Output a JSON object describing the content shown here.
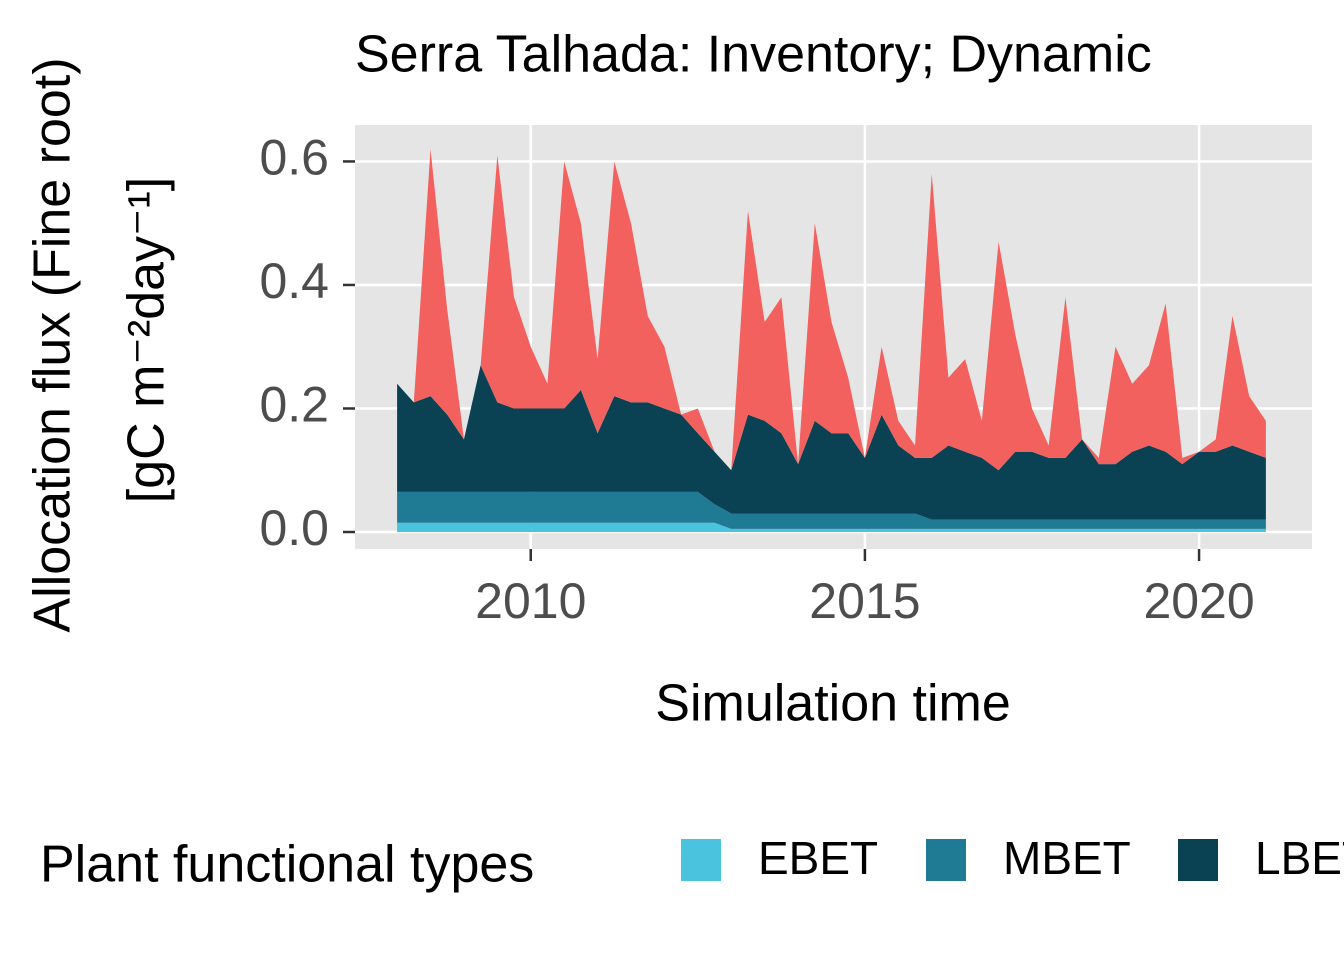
{
  "chart_data": {
    "type": "stacked_area",
    "title": "Serra Talhada: Inventory; Dynamic",
    "x_label": "Simulation time",
    "y_label": [
      "Allocation flux (Fine root)",
      "[gC m⁻²day⁻¹]"
    ],
    "legend_title": "Plant functional types",
    "x": [
      2008,
      2008.25,
      2008.5,
      2008.75,
      2009,
      2009.25,
      2009.5,
      2009.75,
      2010,
      2010.25,
      2010.5,
      2010.75,
      2011,
      2011.25,
      2011.5,
      2011.75,
      2012,
      2012.25,
      2012.5,
      2012.75,
      2013,
      2013.25,
      2013.5,
      2013.75,
      2014,
      2014.25,
      2014.5,
      2014.75,
      2015,
      2015.25,
      2015.5,
      2015.75,
      2016,
      2016.25,
      2016.5,
      2016.75,
      2017,
      2017.25,
      2017.5,
      2017.75,
      2018,
      2018.25,
      2018.5,
      2018.75,
      2019,
      2019.25,
      2019.5,
      2019.75,
      2020,
      2020.25,
      2020.5,
      2020.75,
      2021
    ],
    "series": [
      {
        "name": "EBET",
        "color": "#4ac3de",
        "values": [
          0.015,
          0.015,
          0.015,
          0.015,
          0.015,
          0.015,
          0.015,
          0.015,
          0.015,
          0.015,
          0.015,
          0.015,
          0.015,
          0.015,
          0.015,
          0.015,
          0.015,
          0.015,
          0.015,
          0.015,
          0.005,
          0.005,
          0.005,
          0.005,
          0.005,
          0.005,
          0.005,
          0.005,
          0.005,
          0.005,
          0.005,
          0.005,
          0.005,
          0.005,
          0.005,
          0.005,
          0.005,
          0.005,
          0.005,
          0.005,
          0.005,
          0.005,
          0.005,
          0.005,
          0.005,
          0.005,
          0.005,
          0.005,
          0.005,
          0.005,
          0.005,
          0.005,
          0.005
        ]
      },
      {
        "name": "MBET",
        "color": "#1f7a93",
        "values": [
          0.05,
          0.05,
          0.05,
          0.05,
          0.05,
          0.05,
          0.05,
          0.05,
          0.05,
          0.05,
          0.05,
          0.05,
          0.05,
          0.05,
          0.05,
          0.05,
          0.05,
          0.05,
          0.05,
          0.03,
          0.025,
          0.025,
          0.025,
          0.025,
          0.025,
          0.025,
          0.025,
          0.025,
          0.025,
          0.025,
          0.025,
          0.025,
          0.015,
          0.015,
          0.015,
          0.015,
          0.015,
          0.015,
          0.015,
          0.015,
          0.015,
          0.015,
          0.015,
          0.015,
          0.015,
          0.015,
          0.015,
          0.015,
          0.015,
          0.015,
          0.015,
          0.015,
          0.015
        ]
      },
      {
        "name": "LBET",
        "color": "#0a4153",
        "values": [
          0.175,
          0.145,
          0.155,
          0.125,
          0.085,
          0.205,
          0.145,
          0.135,
          0.135,
          0.135,
          0.135,
          0.165,
          0.095,
          0.155,
          0.145,
          0.145,
          0.135,
          0.125,
          0.095,
          0.085,
          0.07,
          0.16,
          0.15,
          0.13,
          0.08,
          0.15,
          0.13,
          0.13,
          0.09,
          0.16,
          0.11,
          0.09,
          0.1,
          0.12,
          0.11,
          0.1,
          0.08,
          0.11,
          0.11,
          0.1,
          0.1,
          0.13,
          0.09,
          0.09,
          0.11,
          0.12,
          0.11,
          0.09,
          0.11,
          0.11,
          0.12,
          0.11,
          0.1
        ]
      },
      {
        "color": "#f2615d",
        "values": [
          0,
          0,
          0.4,
          0.17,
          0,
          0,
          0.4,
          0.18,
          0.1,
          0.04,
          0.4,
          0.27,
          0.12,
          0.38,
          0.29,
          0.14,
          0.1,
          0,
          0.04,
          0,
          0,
          0.33,
          0.16,
          0.22,
          0,
          0.32,
          0.18,
          0.09,
          0,
          0.11,
          0.04,
          0.02,
          0.46,
          0.11,
          0.15,
          0.06,
          0.37,
          0.19,
          0.07,
          0.02,
          0.26,
          0,
          0.01,
          0.19,
          0.11,
          0.13,
          0.24,
          0.01,
          0,
          0.02,
          0.21,
          0.09,
          0.06
        ]
      }
    ],
    "xlim": [
      2007.37,
      2021.69
    ],
    "xticks": [
      2010,
      2015,
      2020
    ],
    "ylim": [
      -0.0275,
      0.659
    ],
    "yticks": [
      {
        "value": 0,
        "label": "0.0"
      },
      0.2,
      0.4,
      0.6
    ],
    "grid": true
  }
}
